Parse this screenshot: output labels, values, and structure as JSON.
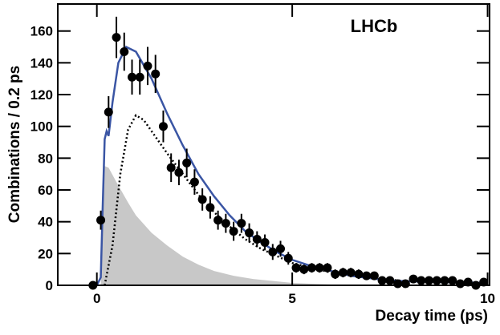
{
  "chart_data": {
    "type": "scatter",
    "annotation": "LHCb",
    "x_label": "Decay time (ps)",
    "y_label": "Combinations / 0.2 ps",
    "xlim": [
      -1,
      10.05
    ],
    "ylim": [
      0,
      177
    ],
    "xticks": [
      0,
      5,
      10
    ],
    "yticks": [
      0,
      20,
      40,
      60,
      80,
      100,
      120,
      140,
      160
    ],
    "series": [
      {
        "kind": "area",
        "color": "#c8c8c8",
        "x": [
          0.1,
          0.15,
          0.2,
          0.3,
          0.5,
          0.8,
          1.0,
          1.4,
          1.8,
          2.2,
          2.6,
          3.0,
          3.5,
          4.0,
          5.0,
          6.0,
          7.0,
          8.0,
          10.0
        ],
        "values": [
          0,
          40,
          75,
          74,
          65,
          52,
          44,
          33,
          25,
          18,
          13,
          9,
          6,
          4,
          1.5,
          0.5,
          0.2,
          0.1,
          0
        ]
      },
      {
        "kind": "dotted",
        "color": "#000000",
        "x": [
          0.2,
          0.4,
          0.6,
          0.8,
          1.0,
          1.2,
          1.4,
          1.8,
          2.2,
          2.6,
          3.0,
          3.4,
          3.8,
          4.2,
          5.0,
          6.0,
          7.0,
          8.0,
          10.0
        ],
        "values": [
          0,
          25,
          70,
          98,
          107,
          104,
          97,
          83,
          70,
          57,
          46,
          37,
          29,
          23,
          14,
          8,
          4.5,
          2.5,
          1
        ]
      },
      {
        "kind": "line",
        "color": "#3a55a4",
        "x": [
          0,
          0.1,
          0.15,
          0.2,
          0.25,
          0.3,
          0.4,
          0.55,
          0.75,
          1.0,
          1.4,
          1.8,
          2.2,
          2.6,
          3.0,
          3.4,
          3.8,
          4.2,
          4.6,
          5.0,
          5.5,
          6.0,
          6.5,
          7.0,
          7.5,
          8.0,
          9.0,
          10.0
        ],
        "values": [
          0,
          5,
          50,
          92,
          97,
          94,
          115,
          140,
          150,
          147,
          130,
          108,
          88,
          70,
          56,
          44,
          34,
          27,
          21,
          16,
          12,
          9,
          6,
          4.5,
          3,
          2.5,
          2,
          1.5
        ]
      },
      {
        "kind": "points",
        "color": "#000000",
        "x": [
          -0.1,
          0.1,
          0.3,
          0.5,
          0.7,
          0.9,
          1.1,
          1.3,
          1.5,
          1.7,
          1.9,
          2.1,
          2.3,
          2.5,
          2.7,
          2.9,
          3.1,
          3.3,
          3.5,
          3.7,
          3.9,
          4.1,
          4.3,
          4.5,
          4.7,
          4.9,
          5.1,
          5.3,
          5.5,
          5.7,
          5.9,
          6.1,
          6.3,
          6.5,
          6.7,
          6.9,
          7.1,
          7.3,
          7.5,
          7.7,
          7.9,
          8.1,
          8.3,
          8.5,
          8.7,
          8.9,
          9.1,
          9.3,
          9.5,
          9.7,
          9.9
        ],
        "values": [
          0,
          41,
          109,
          156,
          147,
          131,
          131,
          138,
          133,
          100,
          74,
          71,
          77,
          65,
          54,
          49,
          41,
          39,
          34,
          39,
          33,
          29,
          27,
          21,
          23,
          17,
          11,
          10,
          11,
          11,
          11,
          7,
          8,
          8,
          7,
          6,
          6,
          3,
          3,
          1,
          1,
          4,
          3,
          3,
          3,
          3,
          3,
          1,
          2,
          0,
          2
        ],
        "errors": [
          1,
          6,
          10,
          13,
          12,
          11,
          11,
          12,
          12,
          10,
          9,
          8,
          9,
          8,
          7,
          7,
          6,
          6,
          6,
          6,
          6,
          5,
          5,
          5,
          5,
          4,
          3,
          3,
          3,
          3,
          3,
          3,
          3,
          3,
          3,
          2,
          2,
          2,
          2,
          1,
          1,
          2,
          2,
          2,
          2,
          2,
          2,
          1,
          1,
          1,
          1
        ]
      }
    ]
  }
}
